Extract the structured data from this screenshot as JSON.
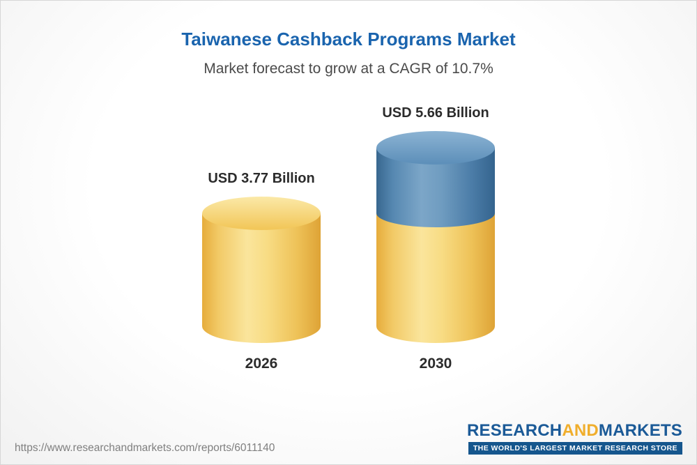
{
  "header": {
    "title": "Taiwanese Cashback Programs Market",
    "subtitle": "Market forecast to grow at a CAGR of 10.7%"
  },
  "chart_data": {
    "type": "bar",
    "title": "Taiwanese Cashback Programs Market",
    "subtitle": "Market forecast to grow at a CAGR of 10.7%",
    "cagr_percent": 10.7,
    "unit": "USD Billion",
    "categories": [
      "2026",
      "2030"
    ],
    "values": [
      3.77,
      5.66
    ],
    "ylim": [
      0,
      6
    ],
    "legend": "none",
    "grid": false,
    "colors": {
      "base": "#f3c75f",
      "growth": "#4e81ad"
    },
    "bars": [
      {
        "category": "2026",
        "label": "USD 3.77 Billion",
        "total": 3.77,
        "segments": [
          {
            "value": 3.77,
            "color": "base"
          }
        ]
      },
      {
        "category": "2030",
        "label": "USD 5.66 Billion",
        "total": 5.66,
        "segments": [
          {
            "value": 3.77,
            "color": "base"
          },
          {
            "value": 1.89,
            "color": "growth"
          }
        ]
      }
    ]
  },
  "footer": {
    "url": "https://www.researchandmarkets.com/reports/6011140",
    "logo": {
      "research": "RESEARCH",
      "and": "AND",
      "markets": "MARKETS",
      "tagline": "THE WORLD'S LARGEST MARKET RESEARCH STORE"
    }
  }
}
